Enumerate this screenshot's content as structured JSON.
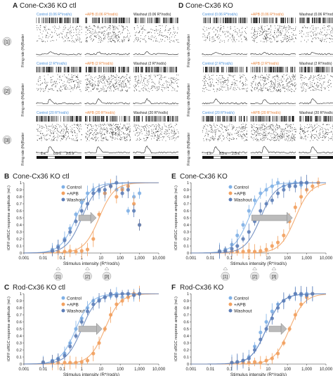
{
  "panel_titles": [
    {
      "letter": "A",
      "title": "Cone-Cx36 KO ctl"
    },
    {
      "letter": "D",
      "title": "Cone-Cx36 KO"
    },
    {
      "letter": "B",
      "title": "Cone-Cx36 KO ctl"
    },
    {
      "letter": "E",
      "title": "Cone-Cx36 KO"
    },
    {
      "letter": "C",
      "title": "Rod-Cx36 KO ctl"
    },
    {
      "letter": "F",
      "title": "Rod-Cx36 KO"
    }
  ],
  "raster": {
    "row_tags": [
      "[1]",
      "[2]",
      "[3]"
    ],
    "raster_label": "Raster",
    "rate_label": "Firing rate (Hz)",
    "time_labels": [
      "1 s",
      "0.5 s",
      "2.5 s"
    ],
    "columns": {
      "A": [
        [
          "Control (0.06 R*/rod/s)",
          "+APB (0.06 R*/rod/s)",
          "Washout (0.06 R*/rod/s)"
        ],
        [
          "Control (2 R*/rod/s)",
          "+APB (2 R*/rod/s)",
          "Washout (2 R*/rod/s)"
        ],
        [
          "Control (20 R*/rod/s)",
          "+APB (20 R*/rod/s)",
          "Washout (20 R*/rod/s)"
        ]
      ],
      "D": [
        [
          "Control (0.06 R*/rod/s)",
          "+APB (0.06 R*/rod/s)",
          "Washout (0.06 R*/rod/s)"
        ],
        [
          "Control (2 R*/rod/s)",
          "+APB (2 R*/rod/s)",
          "Washout (2 R*/rod/s)"
        ],
        [
          "Control (20 R*/rod/s)",
          "+APB (20 R*/rod/s)",
          "Washout (20 R*/rod/s)"
        ]
      ]
    },
    "colors": {
      "control": "#4a90d9",
      "apb": "#e8833a",
      "washout": "#222222"
    }
  },
  "axes": {
    "xlabel": "Stimulus intensity (R*/rod/s)",
    "ylabel": "tOFF αRGC response amplitude (rel.)",
    "xticks": [
      "0.001",
      "0.01",
      "0.1",
      "1",
      "10",
      "100",
      "1,000",
      "10,000"
    ],
    "yticks": [
      "0",
      "0.1",
      "0.2",
      "0.3",
      "0.4",
      "0.5",
      "0.6",
      "0.7",
      "0.8",
      "0.9",
      "1"
    ],
    "markers": [
      "[1]",
      "[2]",
      "[3]"
    ]
  },
  "legend": [
    "Control",
    "+APB",
    "Washout"
  ],
  "series_colors": {
    "Control": "#7fb0e6",
    "+APB": "#f2a05e",
    "Washout": "#5e7fb8"
  },
  "chart_data": [
    {
      "panel": "B",
      "type": "scatter",
      "title": "Cone-Cx36 KO ctl",
      "xlabel": "Stimulus intensity (R*/rod/s)",
      "ylabel": "tOFF αRGC response amplitude (rel.)",
      "xscale": "log",
      "xlim": [
        0.001,
        10000
      ],
      "ylim": [
        0,
        1
      ],
      "series": [
        {
          "name": "Control",
          "x": [
            0.03,
            0.06,
            0.13,
            0.25,
            0.5,
            1,
            2,
            4,
            8,
            16,
            32,
            64,
            128,
            256,
            512,
            1000
          ],
          "y": [
            0.05,
            0.1,
            0.2,
            0.35,
            0.55,
            0.72,
            0.85,
            0.9,
            0.88,
            0.85,
            0.95,
            0.9,
            0.92,
            0.6,
            0.8,
            0.85
          ]
        },
        {
          "name": "+APB",
          "x": [
            0.03,
            0.06,
            0.13,
            0.25,
            0.5,
            1,
            2,
            4,
            8,
            16,
            32,
            64,
            128,
            256,
            512,
            1000
          ],
          "y": [
            0.02,
            0.02,
            0.02,
            0.03,
            0.02,
            0.03,
            0.05,
            0.2,
            0.55,
            0.85,
            0.95,
            0.8,
            0.9,
            0.95,
            0.7,
            0.4
          ]
        },
        {
          "name": "Washout",
          "x": [
            0.03,
            0.06,
            0.13,
            0.25,
            0.5,
            1,
            2,
            4,
            8,
            16,
            32,
            64,
            128,
            256,
            512,
            1000
          ],
          "y": [
            0.03,
            0.08,
            0.18,
            0.3,
            0.45,
            0.6,
            0.7,
            0.85,
            0.9,
            0.9,
            0.95,
            1.0,
            0.85,
            0.9,
            0.6,
            0.4
          ]
        }
      ]
    },
    {
      "panel": "E",
      "type": "scatter",
      "title": "Cone-Cx36 KO",
      "xlabel": "Stimulus intensity (R*/rod/s)",
      "ylabel": "tOFF αRGC response amplitude (rel.)",
      "xscale": "log",
      "xlim": [
        0.001,
        10000
      ],
      "ylim": [
        0,
        1
      ],
      "series": [
        {
          "name": "Control",
          "x": [
            0.03,
            0.06,
            0.13,
            0.25,
            0.5,
            1,
            2,
            4,
            8,
            16,
            32,
            64,
            128,
            256,
            512,
            1000
          ],
          "y": [
            0.03,
            0.05,
            0.12,
            0.25,
            0.4,
            0.6,
            0.75,
            0.85,
            0.9,
            0.95,
            1.0,
            0.95,
            0.98,
            1.0,
            0.97,
            1.0
          ]
        },
        {
          "name": "+APB",
          "x": [
            0.03,
            0.06,
            0.13,
            0.25,
            0.5,
            1,
            2,
            4,
            8,
            16,
            32,
            64,
            128,
            256,
            512,
            1000,
            2000,
            4000
          ],
          "y": [
            0.02,
            0.02,
            0.02,
            0.02,
            0.02,
            0.03,
            0.02,
            0.03,
            0.05,
            0.1,
            0.15,
            0.25,
            0.45,
            0.65,
            0.8,
            0.9,
            0.95,
            1.0
          ]
        },
        {
          "name": "Washout",
          "x": [
            0.03,
            0.06,
            0.13,
            0.25,
            0.5,
            1,
            2,
            4,
            8,
            16,
            32,
            64,
            128,
            256,
            512,
            1000
          ],
          "y": [
            0.02,
            0.03,
            0.06,
            0.1,
            0.2,
            0.3,
            0.45,
            0.6,
            0.7,
            0.75,
            0.85,
            0.9,
            0.95,
            0.95,
            1.0,
            1.0
          ]
        }
      ]
    },
    {
      "panel": "C",
      "type": "scatter",
      "title": "Rod-Cx36 KO ctl",
      "xlabel": "Stimulus intensity (R*/rod/s)",
      "ylabel": "tOFF αRGC response amplitude (rel.)",
      "xscale": "log",
      "xlim": [
        0.001,
        10000
      ],
      "ylim": [
        0,
        1
      ],
      "series": [
        {
          "name": "Control",
          "x": [
            0.01,
            0.03,
            0.06,
            0.13,
            0.25,
            0.5,
            1,
            2,
            4,
            8,
            16,
            32,
            64,
            128,
            256,
            512,
            1000
          ],
          "y": [
            0.03,
            0.05,
            0.08,
            0.15,
            0.3,
            0.5,
            0.65,
            0.8,
            0.9,
            0.92,
            0.95,
            0.97,
            1.0,
            0.95,
            1.0,
            0.98,
            1.0
          ]
        },
        {
          "name": "+APB",
          "x": [
            0.01,
            0.03,
            0.06,
            0.13,
            0.25,
            0.5,
            1,
            2,
            4,
            8,
            16,
            32,
            64,
            128,
            256,
            512,
            1000
          ],
          "y": [
            0.02,
            0.02,
            0.02,
            0.02,
            0.02,
            0.02,
            0.03,
            0.05,
            0.15,
            0.3,
            0.5,
            0.7,
            0.85,
            0.9,
            0.95,
            1.0,
            1.0
          ]
        },
        {
          "name": "Washout",
          "x": [
            0.01,
            0.03,
            0.06,
            0.13,
            0.25,
            0.5,
            1,
            2,
            4,
            8,
            16,
            32,
            64,
            128,
            256,
            512,
            1000
          ],
          "y": [
            0.02,
            0.04,
            0.07,
            0.12,
            0.25,
            0.4,
            0.6,
            0.75,
            0.85,
            0.9,
            0.95,
            1.0,
            0.97,
            1.0,
            1.0,
            0.98,
            1.0
          ]
        }
      ]
    },
    {
      "panel": "F",
      "type": "scatter",
      "title": "Rod-Cx36 KO",
      "xlabel": "Stimulus intensity (R*/rod/s)",
      "ylabel": "tOFF αRGC response amplitude (rel.)",
      "xscale": "log",
      "xlim": [
        0.001,
        10000
      ],
      "ylim": [
        0,
        1
      ],
      "series": [
        {
          "name": "Control",
          "x": [
            0.13,
            0.25,
            0.5,
            1,
            2,
            4,
            8,
            16,
            32,
            64,
            128,
            256,
            512,
            1000,
            2000
          ],
          "y": [
            0.02,
            0.03,
            0.05,
            0.1,
            0.25,
            0.45,
            0.6,
            0.75,
            0.85,
            0.9,
            0.95,
            1.0,
            0.98,
            1.0,
            1.0
          ]
        },
        {
          "name": "+APB",
          "x": [
            0.13,
            0.25,
            0.5,
            1,
            2,
            4,
            8,
            16,
            32,
            64,
            128,
            256,
            512,
            1000,
            2000
          ],
          "y": [
            0.02,
            0.02,
            0.02,
            0.02,
            0.03,
            0.02,
            0.05,
            0.08,
            0.15,
            0.3,
            0.5,
            0.7,
            0.85,
            0.95,
            1.0
          ]
        },
        {
          "name": "Washout",
          "x": [
            0.13,
            0.25,
            0.5,
            1,
            2,
            4,
            8,
            16,
            32,
            64,
            128,
            256,
            512,
            1000,
            2000
          ],
          "y": [
            0.02,
            0.03,
            0.05,
            0.08,
            0.2,
            0.35,
            0.5,
            0.65,
            0.8,
            0.9,
            0.95,
            1.0,
            1.0,
            0.98,
            1.0
          ]
        }
      ]
    }
  ]
}
